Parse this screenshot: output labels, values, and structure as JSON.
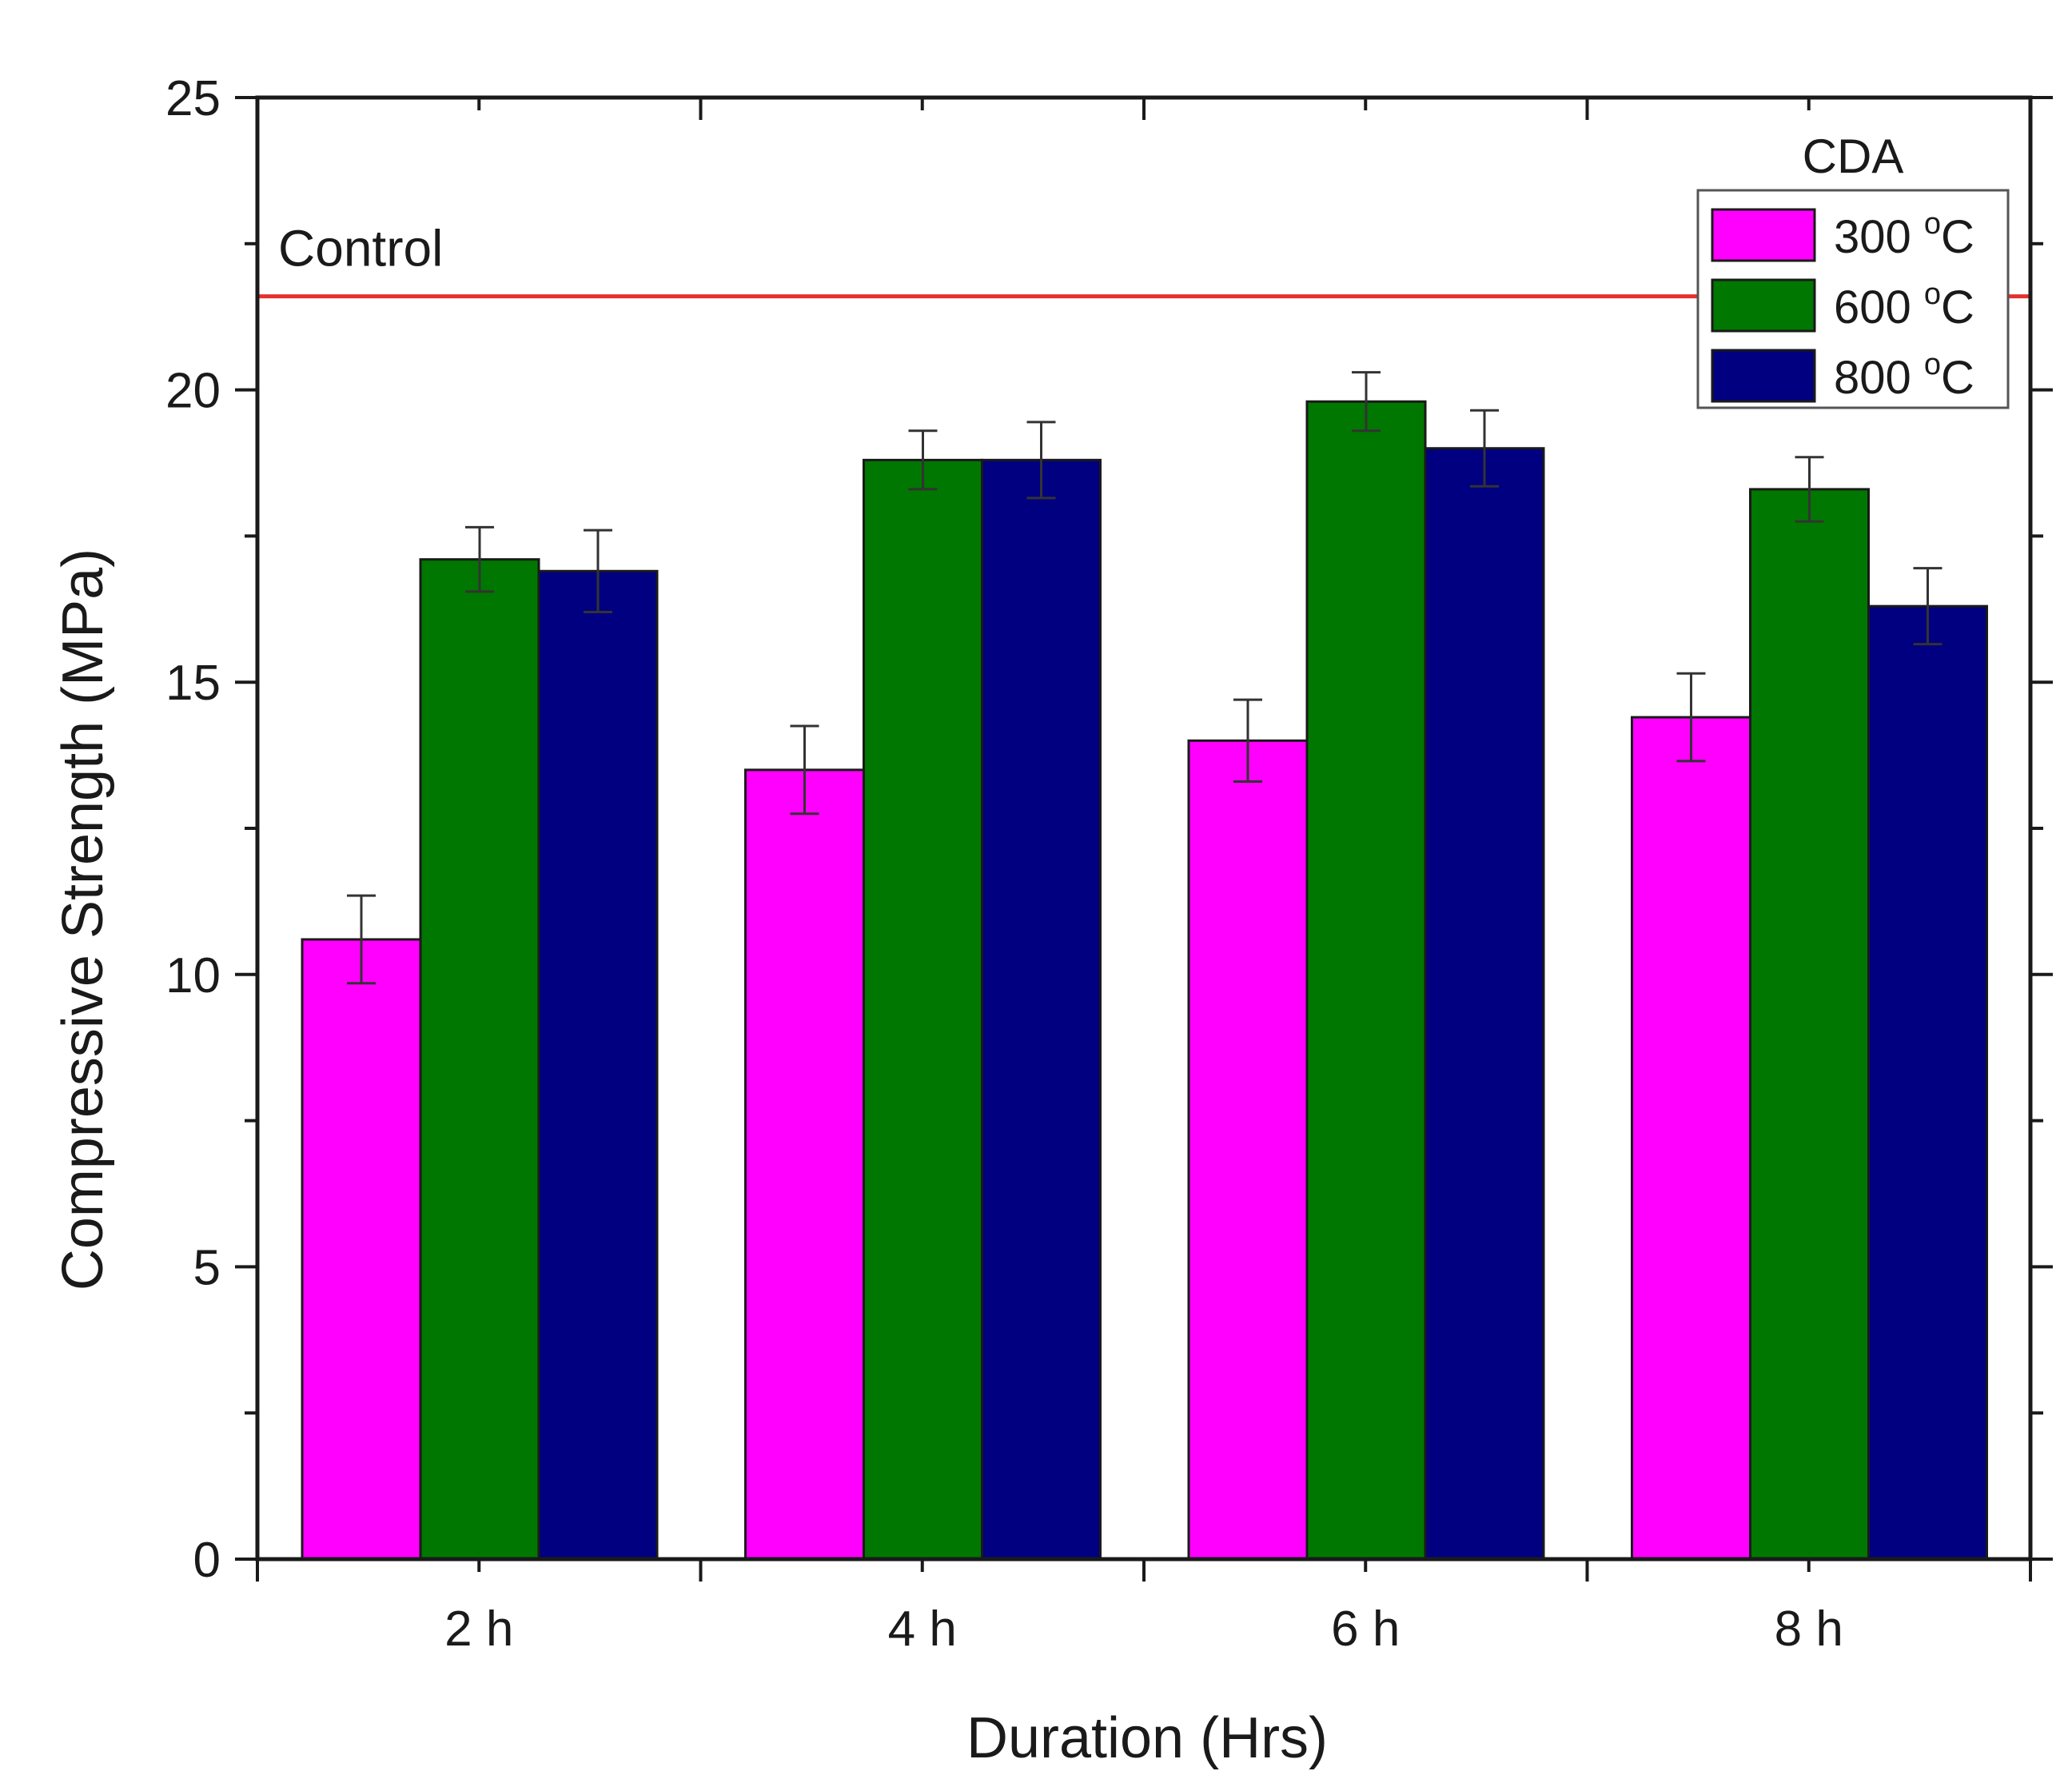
{
  "chart_data": {
    "type": "bar",
    "title": "",
    "xlabel": "Duration (Hrs)",
    "ylabel": "Compressive Strength (MPa)",
    "ylim": [
      0,
      25
    ],
    "yticks": [
      "0",
      "5",
      "10",
      "15",
      "20",
      "25"
    ],
    "categories": [
      "2 h",
      "4 h",
      "6 h",
      "8 h"
    ],
    "series": [
      {
        "name": "300",
        "color": "#FF00FF",
        "values": [
          10.6,
          13.5,
          14.0,
          14.4
        ],
        "errors": [
          0.75,
          0.75,
          0.7,
          0.75
        ]
      },
      {
        "name": "600",
        "color": "#007700",
        "values": [
          17.1,
          18.8,
          19.8,
          18.3
        ],
        "errors": [
          0.55,
          0.5,
          0.5,
          0.55
        ]
      },
      {
        "name": "800",
        "color": "#000080",
        "values": [
          16.9,
          18.8,
          19.0,
          16.3
        ],
        "errors": [
          0.7,
          0.65,
          0.65,
          0.65
        ]
      }
    ],
    "legend": {
      "title": "CDA",
      "unit_superscript": "o",
      "unit": "C",
      "position": "top-right"
    },
    "control": {
      "label": "Control",
      "value": 21.6,
      "color": "#E53030"
    }
  }
}
